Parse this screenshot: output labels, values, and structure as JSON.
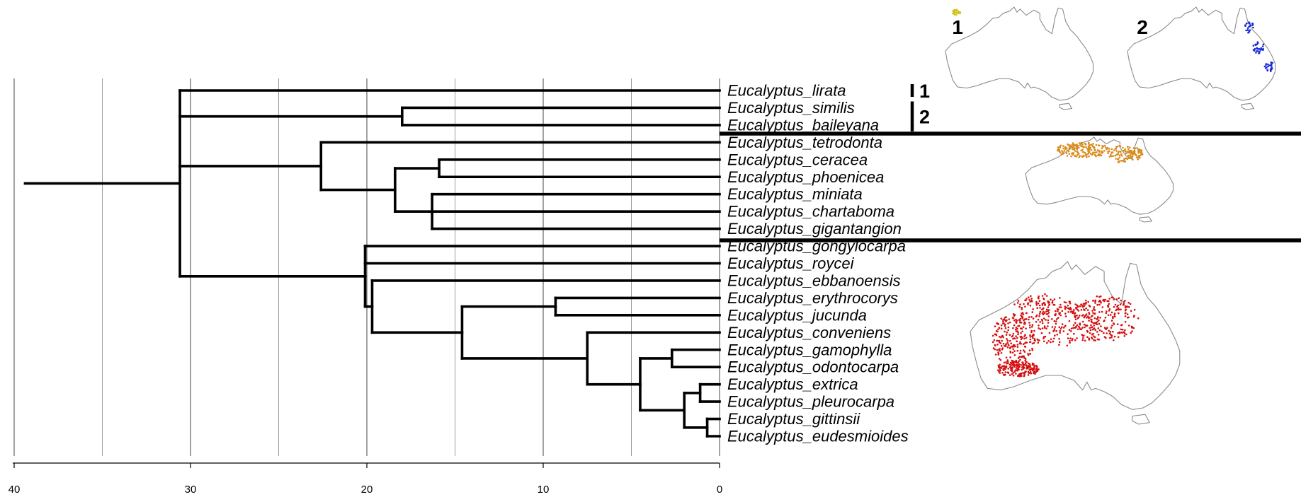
{
  "axis": {
    "ticks": [
      "40",
      "30",
      "20",
      "10",
      "0"
    ]
  },
  "tips": [
    "Eucalyptus_lirata",
    "Eucalyptus_similis",
    "Eucalyptus_baileyana",
    "Eucalyptus_tetrodonta",
    "Eucalyptus_ceracea",
    "Eucalyptus_phoenicea",
    "Eucalyptus_miniata",
    "Eucalyptus_chartaboma",
    "Eucalyptus_gigantangion",
    "Eucalyptus_gongylocarpa",
    "Eucalyptus_roycei",
    "Eucalyptus_ebbanoensis",
    "Eucalyptus_erythrocorys",
    "Eucalyptus_jucunda",
    "Eucalyptus_conveniens",
    "Eucalyptus_gamophylla",
    "Eucalyptus_odontocarpa",
    "Eucalyptus_extrica",
    "Eucalyptus_pleurocarpa",
    "Eucalyptus_gittinsii",
    "Eucalyptus_eudesmioides"
  ],
  "clades": [
    {
      "label": "1",
      "tips": [
        "Eucalyptus_lirata"
      ]
    },
    {
      "label": "2",
      "tips": [
        "Eucalyptus_similis",
        "Eucalyptus_baileyana"
      ]
    }
  ],
  "maps": [
    {
      "label": "1",
      "color": "#d4c21a"
    },
    {
      "label": "2",
      "color": "#1a2bd6"
    },
    {
      "label": "",
      "color": "#d98a1a"
    },
    {
      "label": "",
      "color": "#d41010"
    }
  ],
  "tree_nodes": {
    "comment_units": "node ages in millions of years before present (0 = tips)",
    "root": 39.3,
    "crown": 30.6,
    "similis_baileyana": 18.0,
    "clade_tetrodonta": 22.6,
    "ceracea_group": 18.4,
    "ceracea_phoenicea": 15.9,
    "miniata_group": 16.3,
    "red_clade": 20.1,
    "ebbanoensis_group": 19.7,
    "erythro_group": 14.6,
    "erythro_jucunda": 9.3,
    "conveniens_group": 7.5,
    "gamo_group": 4.5,
    "gamo_odonto": 2.7,
    "extrica_group": 2.0,
    "extrica_pleuro": 1.1,
    "gittinsii_eudes": 0.7
  }
}
